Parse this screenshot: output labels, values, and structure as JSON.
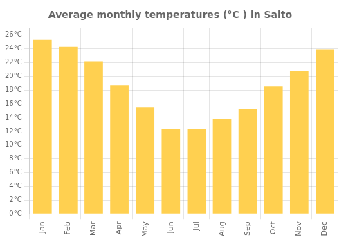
{
  "chart_data": {
    "type": "bar",
    "title": "Average monthly temperatures (°C ) in Salto",
    "categories": [
      "Jan",
      "Feb",
      "Mar",
      "Apr",
      "May",
      "Jun",
      "Jul",
      "Aug",
      "Sep",
      "Oct",
      "Nov",
      "Dec"
    ],
    "values": [
      25.3,
      24.3,
      22.2,
      18.7,
      15.5,
      12.4,
      12.4,
      13.8,
      15.3,
      18.5,
      20.8,
      23.9
    ],
    "color": "#FFD050",
    "ylim": [
      0,
      27
    ],
    "yticks": [
      {
        "value": 0,
        "label": "0°C"
      },
      {
        "value": 2,
        "label": "2°C"
      },
      {
        "value": 4,
        "label": "4°C"
      },
      {
        "value": 6,
        "label": "6°C"
      },
      {
        "value": 8,
        "label": "8°C"
      },
      {
        "value": 10,
        "label": "10°C"
      },
      {
        "value": 12,
        "label": "12°C"
      },
      {
        "value": 14,
        "label": "14°C"
      },
      {
        "value": 16,
        "label": "16°C"
      },
      {
        "value": 18,
        "label": "18°C"
      },
      {
        "value": 20,
        "label": "20°C"
      },
      {
        "value": 22,
        "label": "22°C"
      },
      {
        "value": 24,
        "label": "24°C"
      },
      {
        "value": 26,
        "label": "26°C"
      }
    ],
    "grid": true
  }
}
